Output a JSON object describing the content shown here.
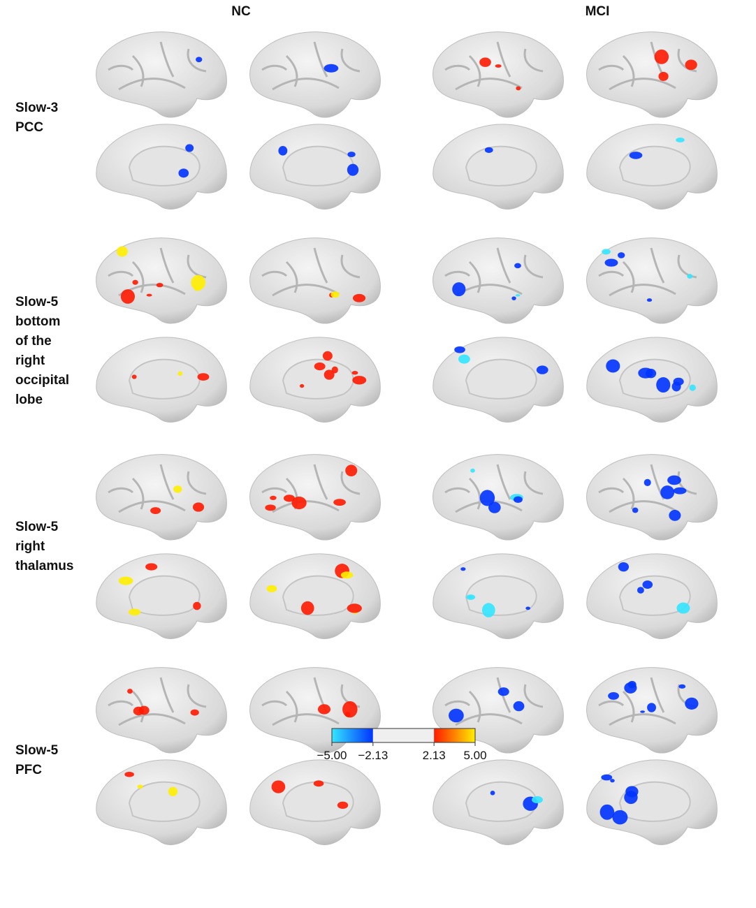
{
  "header": {
    "columns": [
      "NC",
      "MCI"
    ]
  },
  "rows": [
    {
      "label": [
        "Slow-3",
        "PCC"
      ]
    },
    {
      "label": [
        "Slow-5",
        "bottom",
        "of the",
        "right",
        "occipital",
        "lobe"
      ]
    },
    {
      "label": [
        "Slow-5",
        "right",
        "thalamus"
      ]
    },
    {
      "label": [
        "Slow-5",
        "PFC"
      ]
    }
  ],
  "colorbar": {
    "range": [
      -5,
      5
    ],
    "ticks": [
      {
        "value": -5,
        "label": "−5.00"
      },
      {
        "value": -2.13,
        "label": "−2.13"
      },
      {
        "value": 2.13,
        "label": "2.13"
      },
      {
        "value": 5,
        "label": "5.00"
      }
    ],
    "colors": [
      "#33e6ff",
      "#0033ff",
      "#efefef",
      "#ff1a00",
      "#ffee00"
    ]
  }
}
